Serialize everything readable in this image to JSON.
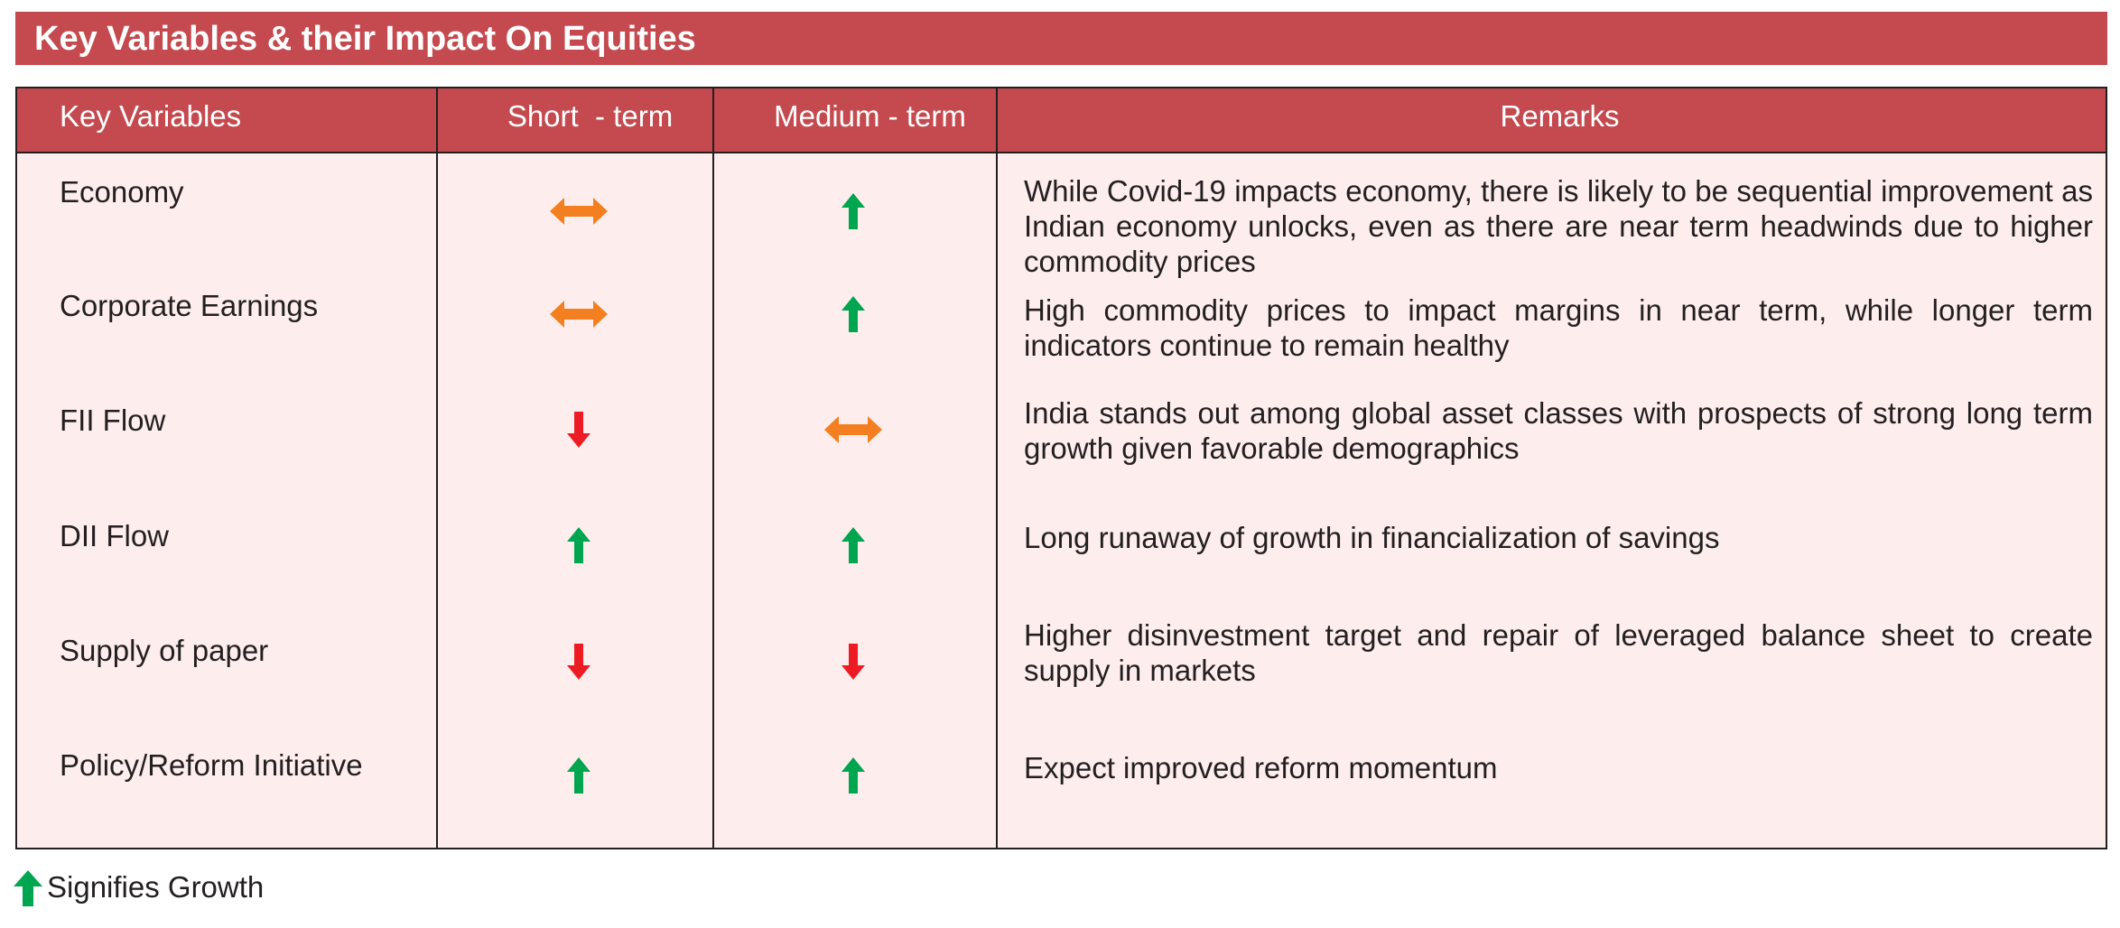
{
  "title": "Key Variables & their Impact On Equities",
  "headers": {
    "variable": "Key Variables",
    "short": "Short  - term",
    "medium": "Medium - term",
    "remarks": "Remarks"
  },
  "rows": [
    {
      "variable": "Economy",
      "short": "neutral",
      "medium": "up",
      "remarks": "While Covid-19 impacts economy, there is likely to be sequential improvement as Indian economy unlocks, even as there are near term headwinds due to higher commodity prices"
    },
    {
      "variable": "Corporate Earnings",
      "short": "neutral",
      "medium": "up",
      "remarks": "High commodity prices to impact margins in near term, while longer term indicators continue to remain healthy"
    },
    {
      "variable": "FII Flow",
      "short": "down",
      "medium": "neutral",
      "remarks": "India stands out among global asset classes with prospects of strong long term growth given favorable demographics"
    },
    {
      "variable": "DII Flow",
      "short": "up",
      "medium": "up",
      "remarks": "Long runaway of growth in financialization of savings"
    },
    {
      "variable": "Supply of paper",
      "short": "down",
      "medium": "down",
      "remarks": "Higher disinvestment target and repair of leveraged balance sheet to create supply in markets"
    },
    {
      "variable": "Policy/Reform Initiative",
      "short": "up",
      "medium": "up",
      "remarks": "Expect improved reform momentum"
    }
  ],
  "icons": {
    "up": "green-up-arrow-icon",
    "down": "red-down-arrow-icon",
    "neutral": "orange-double-arrow-icon"
  },
  "colors": {
    "header_bg": "#c44a4f",
    "table_bg": "#fdeeed",
    "up": "#00a54f",
    "down": "#ed1c24",
    "neutral": "#f47f20"
  },
  "legend": {
    "icon": "green-up-arrow-icon",
    "text": "Signifies Growth"
  }
}
